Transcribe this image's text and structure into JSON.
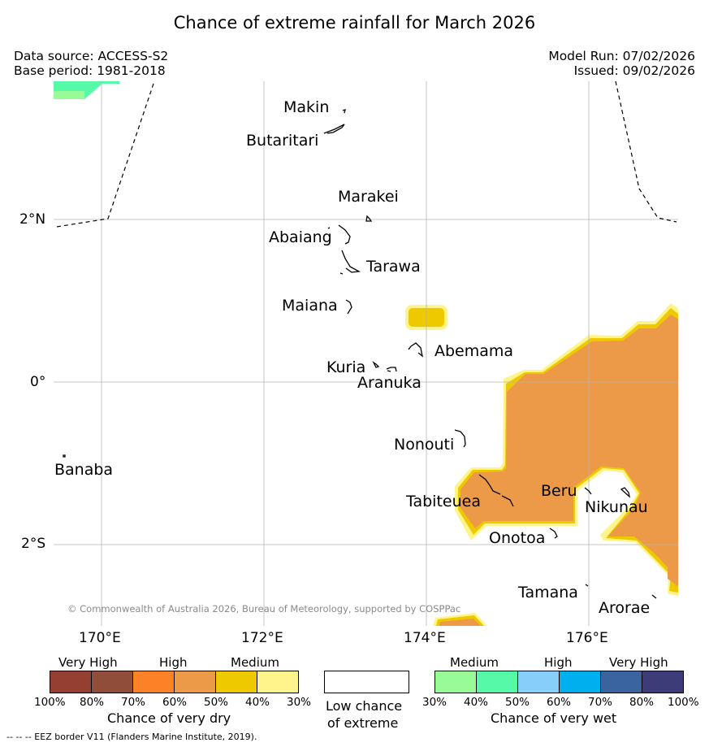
{
  "title": "Chance of extreme rainfall for March 2026",
  "meta": {
    "data_source": "Data source: ACCESS-S2",
    "base_period": "Base period: 1981-2018",
    "model_run": "Model Run: 07/02/2026",
    "issued": "Issued: 09/02/2026"
  },
  "axes": {
    "lat_labels": [
      "2°N",
      "0°",
      "2°S"
    ],
    "lon_labels": [
      "170°E",
      "172°E",
      "174°E",
      "176°E"
    ]
  },
  "islands": {
    "makin": "Makin",
    "butaritari": "Butaritari",
    "marakei": "Marakei",
    "abaiang": "Abaiang",
    "tarawa": "Tarawa",
    "maiana": "Maiana",
    "abemama": "Abemama",
    "kuria": "Kuria",
    "aranuka": "Aranuka",
    "nonouti": "Nonouti",
    "banaba": "Banaba",
    "beru": "Beru",
    "tabiteuea": "Tabiteuea",
    "nikunau": "Nikunau",
    "onotoa": "Onotoa",
    "tamana": "Tamana",
    "arorae": "Arorae"
  },
  "copyright": "© Commonwealth of Australia 2026, Bureau of Meteorology, supported by COSPPac",
  "legend": {
    "dry": {
      "headers": [
        "Very High",
        "High",
        "Medium"
      ],
      "colors": [
        "#953f32",
        "#8f4d3a",
        "#fd8227",
        "#ec9a48",
        "#efc900",
        "#fdf58b"
      ],
      "ticks": [
        "100%",
        "80%",
        "70%",
        "60%",
        "50%",
        "40%",
        "30%"
      ],
      "label": "Chance of very dry"
    },
    "low": {
      "line1": "Low chance",
      "line2": "of extreme",
      "color": "#ffffff"
    },
    "wet": {
      "headers": [
        "Medium",
        "High",
        "Very High"
      ],
      "colors": [
        "#98fb98",
        "#55f9a7",
        "#88cefb",
        "#00b0ee",
        "#3a64a0",
        "#3e3c78"
      ],
      "ticks": [
        "30%",
        "40%",
        "50%",
        "60%",
        "70%",
        "80%",
        "100%"
      ],
      "label": "Chance of very wet"
    }
  },
  "footnote": "--  --  -- EEZ border V11 (Flanders Marine Institute, 2019).",
  "region_colors": {
    "dry_high": "#ec9a48",
    "dry_medium": "#efc900",
    "dry_low": "#fdf58b",
    "wet_medium": "#98fb98",
    "wet_high_edge": "#55f9a7"
  }
}
